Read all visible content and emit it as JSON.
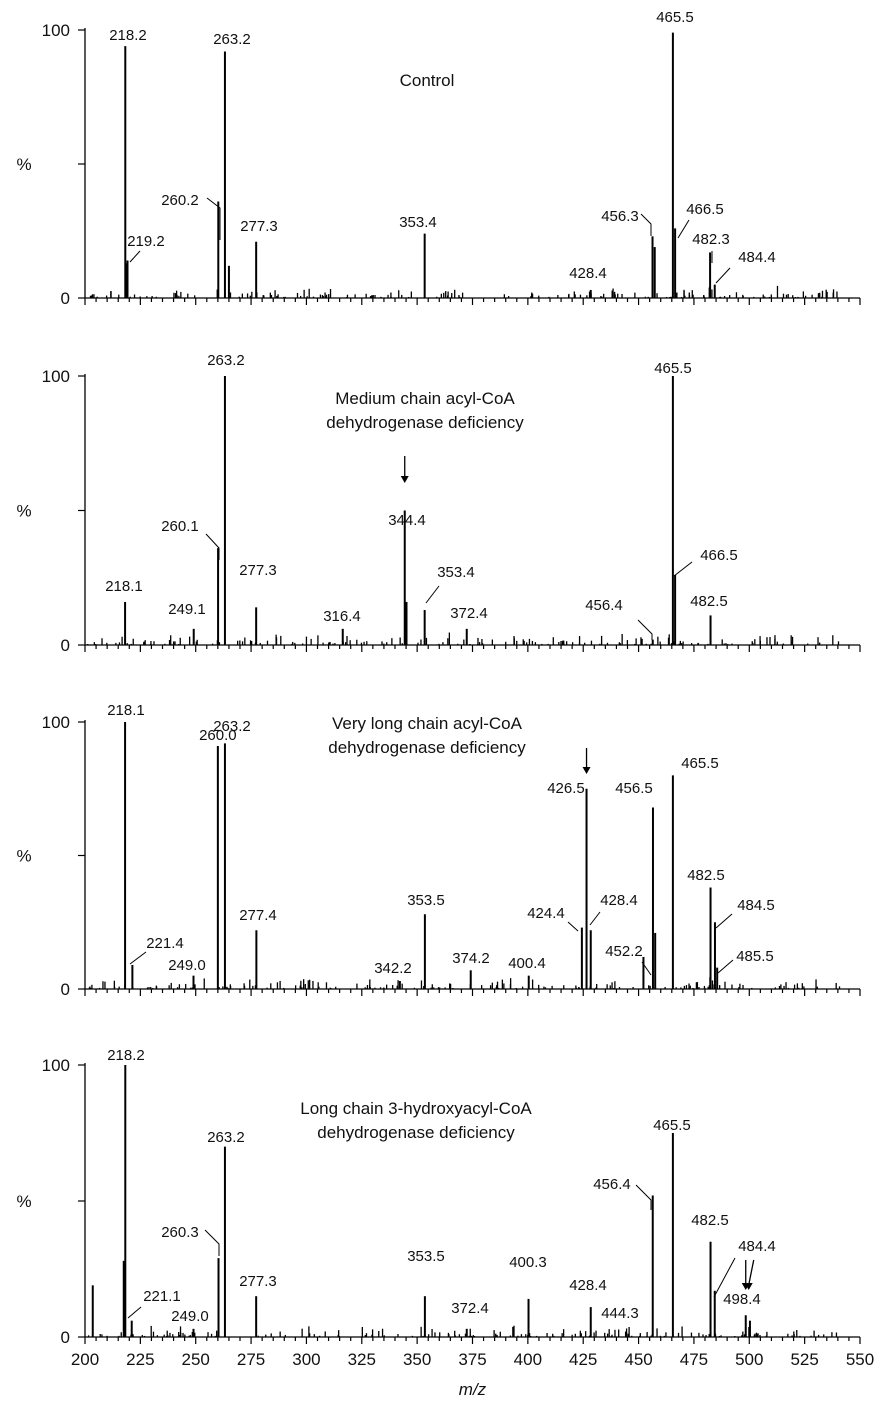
{
  "chart_data": [
    {
      "type": "bar",
      "title": "Control",
      "ylabel": "%",
      "xlim": [
        200,
        550
      ],
      "ylim": [
        0,
        100
      ],
      "ytick_labels": [
        "100",
        "0"
      ],
      "peaks": [
        {
          "x": 218.2,
          "y": 94,
          "label": "218.2"
        },
        {
          "x": 218.8,
          "y": 13,
          "label": ""
        },
        {
          "x": 219.2,
          "y": 14,
          "label": "219.2"
        },
        {
          "x": 260.2,
          "y": 36,
          "label": "260.2"
        },
        {
          "x": 263.2,
          "y": 92,
          "label": "263.2"
        },
        {
          "x": 265.0,
          "y": 12,
          "label": ""
        },
        {
          "x": 277.3,
          "y": 21,
          "label": "277.3"
        },
        {
          "x": 353.4,
          "y": 24,
          "label": "353.4"
        },
        {
          "x": 428.4,
          "y": 3,
          "label": "428.4"
        },
        {
          "x": 456.3,
          "y": 23,
          "label": "456.3"
        },
        {
          "x": 457.3,
          "y": 19,
          "label": ""
        },
        {
          "x": 465.5,
          "y": 99,
          "label": "465.5"
        },
        {
          "x": 466.5,
          "y": 26,
          "label": "466.5"
        },
        {
          "x": 482.3,
          "y": 17,
          "label": "482.3"
        },
        {
          "x": 484.4,
          "y": 5,
          "label": "484.4"
        }
      ]
    },
    {
      "type": "bar",
      "title": "Medium chain acyl-CoA dehydrogenase deficiency",
      "ylabel": "%",
      "xlim": [
        200,
        550
      ],
      "ylim": [
        0,
        100
      ],
      "ytick_labels": [
        "100",
        "0"
      ],
      "arrow_at": [
        344.4
      ],
      "peaks": [
        {
          "x": 218.1,
          "y": 16,
          "label": "218.1"
        },
        {
          "x": 249.1,
          "y": 6,
          "label": "249.1"
        },
        {
          "x": 260.1,
          "y": 36,
          "label": "260.1"
        },
        {
          "x": 263.2,
          "y": 100,
          "label": "263.2"
        },
        {
          "x": 277.3,
          "y": 14,
          "label": "277.3"
        },
        {
          "x": 316.4,
          "y": 6,
          "label": "316.4"
        },
        {
          "x": 344.4,
          "y": 50,
          "label": "344.4"
        },
        {
          "x": 345.2,
          "y": 16,
          "label": ""
        },
        {
          "x": 353.4,
          "y": 13,
          "label": "353.4"
        },
        {
          "x": 372.4,
          "y": 6,
          "label": "372.4"
        },
        {
          "x": 456.4,
          "y": 2,
          "label": "456.4"
        },
        {
          "x": 465.5,
          "y": 100,
          "label": "465.5"
        },
        {
          "x": 466.5,
          "y": 26,
          "label": "466.5"
        },
        {
          "x": 482.5,
          "y": 11,
          "label": "482.5"
        }
      ]
    },
    {
      "type": "bar",
      "title": "Very long chain acyl-CoA dehydrogenase deficiency",
      "ylabel": "%",
      "xlim": [
        200,
        550
      ],
      "ylim": [
        0,
        100
      ],
      "ytick_labels": [
        "100",
        "0"
      ],
      "arrow_at": [
        426.5
      ],
      "peaks": [
        {
          "x": 218.1,
          "y": 100,
          "label": "218.1"
        },
        {
          "x": 221.4,
          "y": 9,
          "label": "221.4"
        },
        {
          "x": 249.0,
          "y": 5,
          "label": "249.0"
        },
        {
          "x": 260.0,
          "y": 91,
          "label": "260.0"
        },
        {
          "x": 263.2,
          "y": 92,
          "label": "263.2"
        },
        {
          "x": 277.4,
          "y": 22,
          "label": "277.4"
        },
        {
          "x": 342.2,
          "y": 3,
          "label": "342.2"
        },
        {
          "x": 353.5,
          "y": 28,
          "label": "353.5"
        },
        {
          "x": 374.2,
          "y": 7,
          "label": "374.2"
        },
        {
          "x": 400.4,
          "y": 5,
          "label": "400.4"
        },
        {
          "x": 424.4,
          "y": 23,
          "label": "424.4"
        },
        {
          "x": 426.5,
          "y": 75,
          "label": "426.5"
        },
        {
          "x": 428.4,
          "y": 22,
          "label": "428.4"
        },
        {
          "x": 452.2,
          "y": 12,
          "label": "452.2"
        },
        {
          "x": 456.5,
          "y": 68,
          "label": "456.5"
        },
        {
          "x": 457.5,
          "y": 21,
          "label": ""
        },
        {
          "x": 465.5,
          "y": 80,
          "label": "465.5"
        },
        {
          "x": 482.5,
          "y": 38,
          "label": "482.5"
        },
        {
          "x": 484.5,
          "y": 25,
          "label": "484.5"
        },
        {
          "x": 485.5,
          "y": 8,
          "label": "485.5"
        }
      ]
    },
    {
      "type": "bar",
      "title": "Long chain 3-hydroxyacyl-CoA dehydrogenase deficiency",
      "ylabel": "%",
      "xlabel": "m/z",
      "xlim": [
        200,
        550
      ],
      "ylim": [
        0,
        100
      ],
      "ytick_labels": [
        "100",
        "0"
      ],
      "xtick_labels": [
        "200",
        "225",
        "250",
        "275",
        "300",
        "325",
        "350",
        "375",
        "400",
        "425",
        "450",
        "475",
        "500",
        "525",
        "550"
      ],
      "arrow_at": [
        498.4,
        502.0
      ],
      "peaks": [
        {
          "x": 203.5,
          "y": 19,
          "label": ""
        },
        {
          "x": 218.2,
          "y": 100,
          "label": "218.2"
        },
        {
          "x": 217.5,
          "y": 28,
          "label": ""
        },
        {
          "x": 221.1,
          "y": 6,
          "label": "221.1"
        },
        {
          "x": 249.0,
          "y": 3,
          "label": "249.0"
        },
        {
          "x": 260.3,
          "y": 29,
          "label": "260.3"
        },
        {
          "x": 263.2,
          "y": 70,
          "label": "263.2"
        },
        {
          "x": 277.3,
          "y": 15,
          "label": "277.3"
        },
        {
          "x": 353.5,
          "y": 15,
          "label": "353.5"
        },
        {
          "x": 372.4,
          "y": 3,
          "label": "372.4"
        },
        {
          "x": 400.3,
          "y": 14,
          "label": "400.3"
        },
        {
          "x": 428.4,
          "y": 11,
          "label": "428.4"
        },
        {
          "x": 444.3,
          "y": 2,
          "label": "444.3"
        },
        {
          "x": 456.4,
          "y": 52,
          "label": "456.4"
        },
        {
          "x": 465.5,
          "y": 75,
          "label": "465.5"
        },
        {
          "x": 482.5,
          "y": 35,
          "label": "482.5"
        },
        {
          "x": 484.4,
          "y": 17,
          "label": "484.4"
        },
        {
          "x": 498.4,
          "y": 8,
          "label": "498.4"
        },
        {
          "x": 500.3,
          "y": 6,
          "label": ""
        }
      ]
    }
  ]
}
